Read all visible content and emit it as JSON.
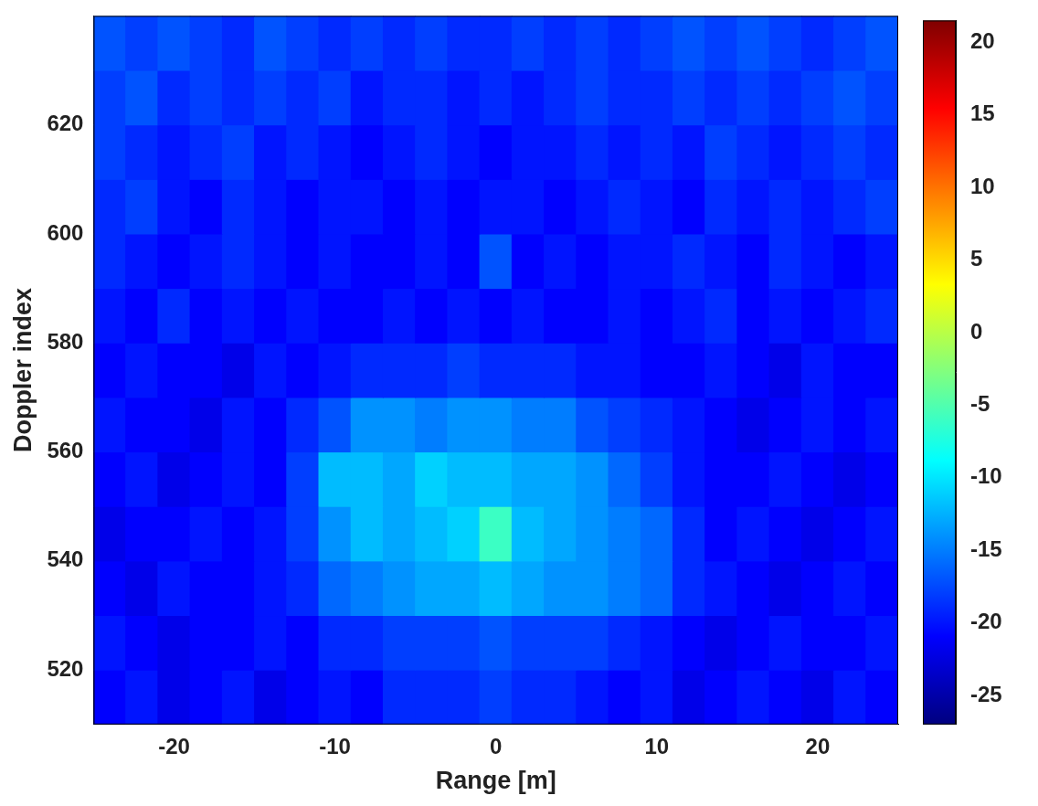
{
  "chart_data": {
    "type": "heatmap",
    "x_label": "Range [m]",
    "y_label": "Doppler index",
    "xlim": [
      -25,
      25
    ],
    "ylim": [
      510,
      640
    ],
    "xticks": [
      -20,
      -10,
      0,
      10,
      20
    ],
    "yticks": [
      520,
      540,
      560,
      580,
      600,
      620
    ],
    "grid": false,
    "x": [
      -24,
      -22,
      -20,
      -18,
      -16,
      -14,
      -12,
      -10,
      -8,
      -6,
      -4,
      -2,
      0,
      2,
      4,
      6,
      8,
      10,
      12,
      14,
      16,
      18,
      20,
      22,
      24
    ],
    "y": [
      515,
      525,
      535,
      545,
      555,
      565,
      575,
      585,
      595,
      605,
      615,
      625,
      635
    ],
    "cells": [
      [
        -21,
        -20,
        -22,
        -21,
        -20,
        -22,
        -21,
        -20,
        -21,
        -19,
        -19,
        -19,
        -18,
        -19,
        -19,
        -20,
        -21,
        -20,
        -22,
        -21,
        -20,
        -21,
        -22,
        -20,
        -21
      ],
      [
        -20,
        -21,
        -22,
        -21,
        -21,
        -20,
        -21,
        -19,
        -19,
        -18,
        -18,
        -18,
        -17,
        -18,
        -18,
        -18,
        -19,
        -20,
        -21,
        -22,
        -21,
        -20,
        -21,
        -21,
        -20
      ],
      [
        -21,
        -22,
        -20,
        -21,
        -21,
        -20,
        -19,
        -16,
        -15,
        -14,
        -13,
        -13,
        -12,
        -13,
        -14,
        -14,
        -15,
        -16,
        -19,
        -20,
        -21,
        -22,
        -21,
        -20,
        -21
      ],
      [
        -22,
        -21,
        -21,
        -20,
        -21,
        -20,
        -18,
        -14,
        -12,
        -13,
        -12,
        -11,
        -6,
        -12,
        -13,
        -14,
        -15,
        -16,
        -19,
        -21,
        -20,
        -21,
        -22,
        -21,
        -20
      ],
      [
        -21,
        -20,
        -22,
        -21,
        -20,
        -21,
        -18,
        -12,
        -12,
        -13,
        -11,
        -12,
        -12,
        -13,
        -13,
        -14,
        -16,
        -18,
        -20,
        -21,
        -21,
        -20,
        -21,
        -22,
        -21
      ],
      [
        -20,
        -21,
        -21,
        -22,
        -20,
        -21,
        -19,
        -17,
        -14,
        -14,
        -15,
        -14,
        -14,
        -15,
        -15,
        -17,
        -18,
        -19,
        -20,
        -21,
        -22,
        -21,
        -20,
        -21,
        -20
      ],
      [
        -21,
        -20,
        -21,
        -21,
        -22,
        -20,
        -21,
        -20,
        -19,
        -19,
        -19,
        -18,
        -19,
        -19,
        -19,
        -20,
        -20,
        -21,
        -21,
        -20,
        -21,
        -22,
        -20,
        -21,
        -21
      ],
      [
        -20,
        -21,
        -19,
        -21,
        -20,
        -21,
        -20,
        -21,
        -21,
        -20,
        -21,
        -20,
        -21,
        -20,
        -21,
        -21,
        -20,
        -21,
        -20,
        -19,
        -21,
        -20,
        -21,
        -20,
        -19
      ],
      [
        -19,
        -20,
        -21,
        -20,
        -19,
        -20,
        -21,
        -20,
        -21,
        -21,
        -20,
        -21,
        -17,
        -21,
        -20,
        -21,
        -20,
        -20,
        -19,
        -20,
        -21,
        -19,
        -20,
        -21,
        -20
      ],
      [
        -19,
        -18,
        -20,
        -21,
        -19,
        -20,
        -21,
        -20,
        -20,
        -21,
        -20,
        -21,
        -20,
        -20,
        -21,
        -20,
        -19,
        -20,
        -21,
        -19,
        -20,
        -19,
        -20,
        -19,
        -18
      ],
      [
        -18,
        -19,
        -20,
        -19,
        -18,
        -20,
        -19,
        -20,
        -21,
        -20,
        -19,
        -20,
        -21,
        -20,
        -20,
        -19,
        -20,
        -19,
        -20,
        -18,
        -19,
        -20,
        -19,
        -18,
        -19
      ],
      [
        -18,
        -17,
        -19,
        -18,
        -19,
        -18,
        -19,
        -18,
        -20,
        -19,
        -19,
        -20,
        -19,
        -20,
        -19,
        -18,
        -19,
        -19,
        -18,
        -19,
        -18,
        -19,
        -18,
        -17,
        -18
      ],
      [
        -17,
        -18,
        -17,
        -18,
        -19,
        -17,
        -18,
        -19,
        -18,
        -19,
        -18,
        -19,
        -19,
        -18,
        -19,
        -18,
        -19,
        -18,
        -17,
        -18,
        -17,
        -18,
        -19,
        -18,
        -17
      ]
    ],
    "colorbar": {
      "range": [
        -27,
        21.5
      ],
      "ticks": [
        -25,
        -20,
        -15,
        -10,
        -5,
        0,
        5,
        10,
        15,
        20
      ]
    }
  }
}
